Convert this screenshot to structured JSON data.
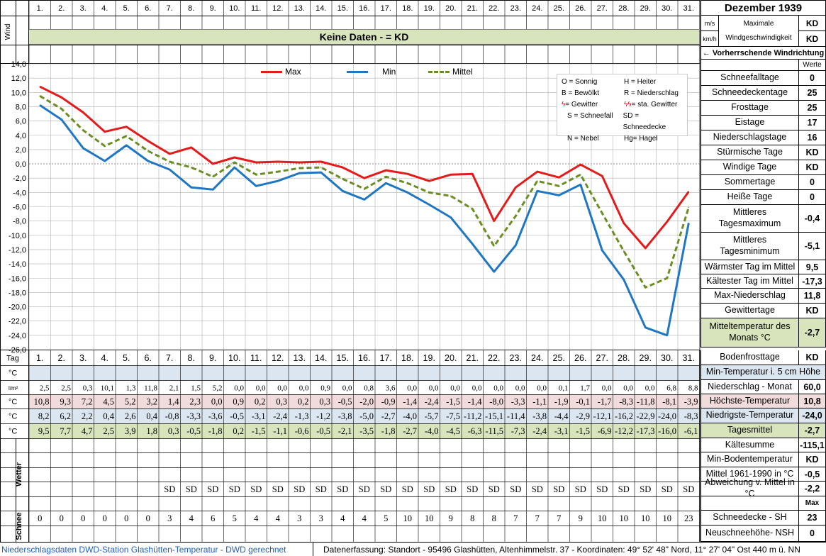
{
  "header": {
    "title": "Dezember 1939",
    "wind_label": "Wind",
    "unit_ms": "m/s",
    "unit_kmh": "km/h",
    "wind_max_label_1": "Maximale",
    "wind_max_label_2": "Windgeschwindigkeit",
    "wind_max_ms": "KD",
    "wind_max_kmh": "KD",
    "no_data_banner": "Keine Daten -  = KD",
    "prevailing_wind": "←  Vorherrschende Windrichtung",
    "werte_label": "Werte"
  },
  "days": [
    "1.",
    "2.",
    "3.",
    "4.",
    "5.",
    "6.",
    "7.",
    "8.",
    "9.",
    "10.",
    "11.",
    "12.",
    "13.",
    "14.",
    "15.",
    "16.",
    "17.",
    "18.",
    "19.",
    "20.",
    "21.",
    "22.",
    "23.",
    "24.",
    "25.",
    "26.",
    "27.",
    "28.",
    "29.",
    "30.",
    "31."
  ],
  "chart_data": {
    "type": "line",
    "x": [
      1,
      2,
      3,
      4,
      5,
      6,
      7,
      8,
      9,
      10,
      11,
      12,
      13,
      14,
      15,
      16,
      17,
      18,
      19,
      20,
      21,
      22,
      23,
      24,
      25,
      26,
      27,
      28,
      29,
      30,
      31
    ],
    "ylim": [
      -26,
      14
    ],
    "ytick_step": 2,
    "grid": true,
    "series": [
      {
        "name": "Max",
        "color": "#e31b1b",
        "dash": "",
        "values": [
          10.8,
          9.3,
          7.2,
          4.5,
          5.2,
          3.2,
          1.4,
          2.3,
          0.0,
          0.9,
          0.2,
          0.3,
          0.2,
          0.3,
          -0.5,
          -2.0,
          -0.9,
          -1.4,
          -2.4,
          -1.5,
          -1.4,
          -8.0,
          -3.3,
          -1.1,
          -1.9,
          -0.1,
          -1.7,
          -8.3,
          -11.8,
          -8.1,
          -3.9
        ]
      },
      {
        "name": "Min",
        "color": "#1f77c4",
        "dash": "",
        "values": [
          8.2,
          6.2,
          2.2,
          0.4,
          2.6,
          0.4,
          -0.8,
          -3.3,
          -3.6,
          -0.5,
          -3.1,
          -2.4,
          -1.3,
          -1.2,
          -3.8,
          -5.0,
          -2.7,
          -4.0,
          -5.7,
          -7.5,
          -11.2,
          -15.1,
          -11.4,
          -3.8,
          -4.4,
          -2.9,
          -12.1,
          -16.2,
          -22.9,
          -24.0,
          -8.3
        ]
      },
      {
        "name": "Mittel",
        "color": "#6b8e23",
        "dash": "7,4",
        "values": [
          9.5,
          7.7,
          4.7,
          2.5,
          3.9,
          1.8,
          0.3,
          -0.5,
          -1.8,
          0.2,
          -1.5,
          -1.1,
          -0.6,
          -0.5,
          -2.1,
          -3.5,
          -1.8,
          -2.7,
          -4.0,
          -4.5,
          -6.3,
          -11.5,
          -7.3,
          -2.4,
          -3.1,
          -1.5,
          -6.9,
          -12.2,
          -17.3,
          -16.0,
          -6.1
        ]
      }
    ],
    "weather_legend": [
      [
        "O = Sonnig",
        "H = Heiter"
      ],
      [
        "B = Bewölkt",
        "R = Niederschlag"
      ],
      [
        "= Gewitter",
        "= sta. Gewitter"
      ],
      [
        "S = Schneefall",
        "SD = Schneedecke"
      ],
      [
        "N = Nebel",
        "Hg=  Hagel"
      ]
    ]
  },
  "table": {
    "tag_label": "Tag",
    "unit_c": "°C",
    "unit_lm2": "l/m²",
    "weather_label": "Wetter",
    "snow_label": "Schnee",
    "precip": [
      "2,5",
      "2,5",
      "0,3",
      "10,1",
      "1,3",
      "11,8",
      "2,1",
      "1,5",
      "5,2",
      "0,0",
      "0,0",
      "0,0",
      "0,0",
      "0,9",
      "0,0",
      "0,8",
      "3,6",
      "0,0",
      "0,0",
      "0,0",
      "0,0",
      "0,0",
      "0,0",
      "0,0",
      "0,1",
      "1,7",
      "0,0",
      "0,0",
      "0,0",
      "6,8",
      "8,8"
    ],
    "max_row": [
      "10,8",
      "9,3",
      "7,2",
      "4,5",
      "5,2",
      "3,2",
      "1,4",
      "2,3",
      "0,0",
      "0,9",
      "0,2",
      "0,3",
      "0,2",
      "0,3",
      "-0,5",
      "-2,0",
      "-0,9",
      "-1,4",
      "-2,4",
      "-1,5",
      "-1,4",
      "-8,0",
      "-3,3",
      "-1,1",
      "-1,9",
      "-0,1",
      "-1,7",
      "-8,3",
      "-11,8",
      "-8,1",
      "-3,9"
    ],
    "min_row": [
      "8,2",
      "6,2",
      "2,2",
      "0,4",
      "2,6",
      "0,4",
      "-0,8",
      "-3,3",
      "-3,6",
      "-0,5",
      "-3,1",
      "-2,4",
      "-1,3",
      "-1,2",
      "-3,8",
      "-5,0",
      "-2,7",
      "-4,0",
      "-5,7",
      "-7,5",
      "-11,2",
      "-15,1",
      "-11,4",
      "-3,8",
      "-4,4",
      "-2,9",
      "-12,1",
      "-16,2",
      "-22,9",
      "-24,0",
      "-8,3"
    ],
    "mean_row": [
      "9,5",
      "7,7",
      "4,7",
      "2,5",
      "3,9",
      "1,8",
      "0,3",
      "-0,5",
      "-1,8",
      "0,2",
      "-1,5",
      "-1,1",
      "-0,6",
      "-0,5",
      "-2,1",
      "-3,5",
      "-1,8",
      "-2,7",
      "-4,0",
      "-4,5",
      "-6,3",
      "-11,5",
      "-7,3",
      "-2,4",
      "-3,1",
      "-1,5",
      "-6,9",
      "-12,2",
      "-17,3",
      "-16,0",
      "-6,1"
    ],
    "weather_row": [
      "",
      "",
      "",
      "",
      "",
      "",
      "SD",
      "SD",
      "SD",
      "SD",
      "SD",
      "SD",
      "SD",
      "SD",
      "SD",
      "SD",
      "SD",
      "SD",
      "SD",
      "SD",
      "SD",
      "SD",
      "SD",
      "SD",
      "SD",
      "SD",
      "SD",
      "SD",
      "SD",
      "SD",
      "SD"
    ],
    "snow_row": [
      "0",
      "0",
      "0",
      "0",
      "0",
      "0",
      "3",
      "4",
      "6",
      "5",
      "4",
      "4",
      "3",
      "3",
      "4",
      "4",
      "5",
      "10",
      "10",
      "9",
      "8",
      "8",
      "7",
      "7",
      "7",
      "9",
      "10",
      "10",
      "10",
      "10",
      "23"
    ]
  },
  "stats_top": [
    {
      "label": "Schneefalltage",
      "value": "0"
    },
    {
      "label": "Schneedeckentage",
      "value": "25"
    },
    {
      "label": "Frosttage",
      "value": "25"
    },
    {
      "label": "Eistage",
      "value": "17"
    },
    {
      "label": "Niederschlagstage",
      "value": "16"
    },
    {
      "label": "Stürmische Tage",
      "value": "KD"
    },
    {
      "label": "Windige Tage",
      "value": "KD"
    },
    {
      "label": "Sommertage",
      "value": "0"
    },
    {
      "label": "Heiße Tage",
      "value": "0"
    },
    {
      "label": "Mittleres Tagesmaximum",
      "value": "-0,4"
    },
    {
      "label": "Mittleres Tagesminimum",
      "value": "-5,1"
    },
    {
      "label": "Wärmster Tag im Mittel",
      "value": "9,5"
    },
    {
      "label": "Kältester Tag im Mittel",
      "value": "-17,3"
    },
    {
      "label": "Max-Niederschlag",
      "value": "11,8"
    },
    {
      "label": "Gewittertage",
      "value": "KD"
    },
    {
      "label": "Mitteltemperatur des Monats °C",
      "value": "-2,7"
    }
  ],
  "stats_bottom": [
    {
      "label": "Bodenfrosttage",
      "value": "KD"
    },
    {
      "label": "Min-Temperatur i. 5 cm Höhe",
      "value": ""
    },
    {
      "label": "Niederschlag - Monat",
      "value": "60,0"
    },
    {
      "label": "Höchste-Temperatur",
      "value": "10,8"
    },
    {
      "label": "Niedrigste-Temperatur",
      "value": "-24,0"
    },
    {
      "label": "Tagesmittel",
      "value": "-2,7"
    },
    {
      "label": "Kältesumme",
      "value": "-115,1"
    },
    {
      "label": "Min-Bodentemperatur",
      "value": "KD"
    },
    {
      "label": "Mittel 1961-1990 in °C",
      "value": "-0,5"
    },
    {
      "label": "Abweichung v. Mittel in °C",
      "value": "-2,2"
    },
    {
      "label": "",
      "value": "Max"
    },
    {
      "label": "Schneedecke -   SH",
      "value": "23"
    },
    {
      "label": "Neuschneehöhe-  NSH",
      "value": "0"
    }
  ],
  "footer": {
    "left": "Niederschlagsdaten DWD-Station Glashütten-Temperatur -  DWD gerechnet",
    "right": "Datenerfassung:  Standort -   95496  Glashütten, Altenhimmelstr. 37 - Koordinaten:  49° 52' 48\" Nord,   11° 27' 04\" Ost   440 m ü. NN"
  },
  "colors": {
    "banner": "#d8e4bc",
    "grid": "#b0b0b0",
    "row_blue": "#dce6f1",
    "row_pink": "#f2dcdb",
    "row_green": "#d8e4bc",
    "red_text": "#e00000"
  }
}
